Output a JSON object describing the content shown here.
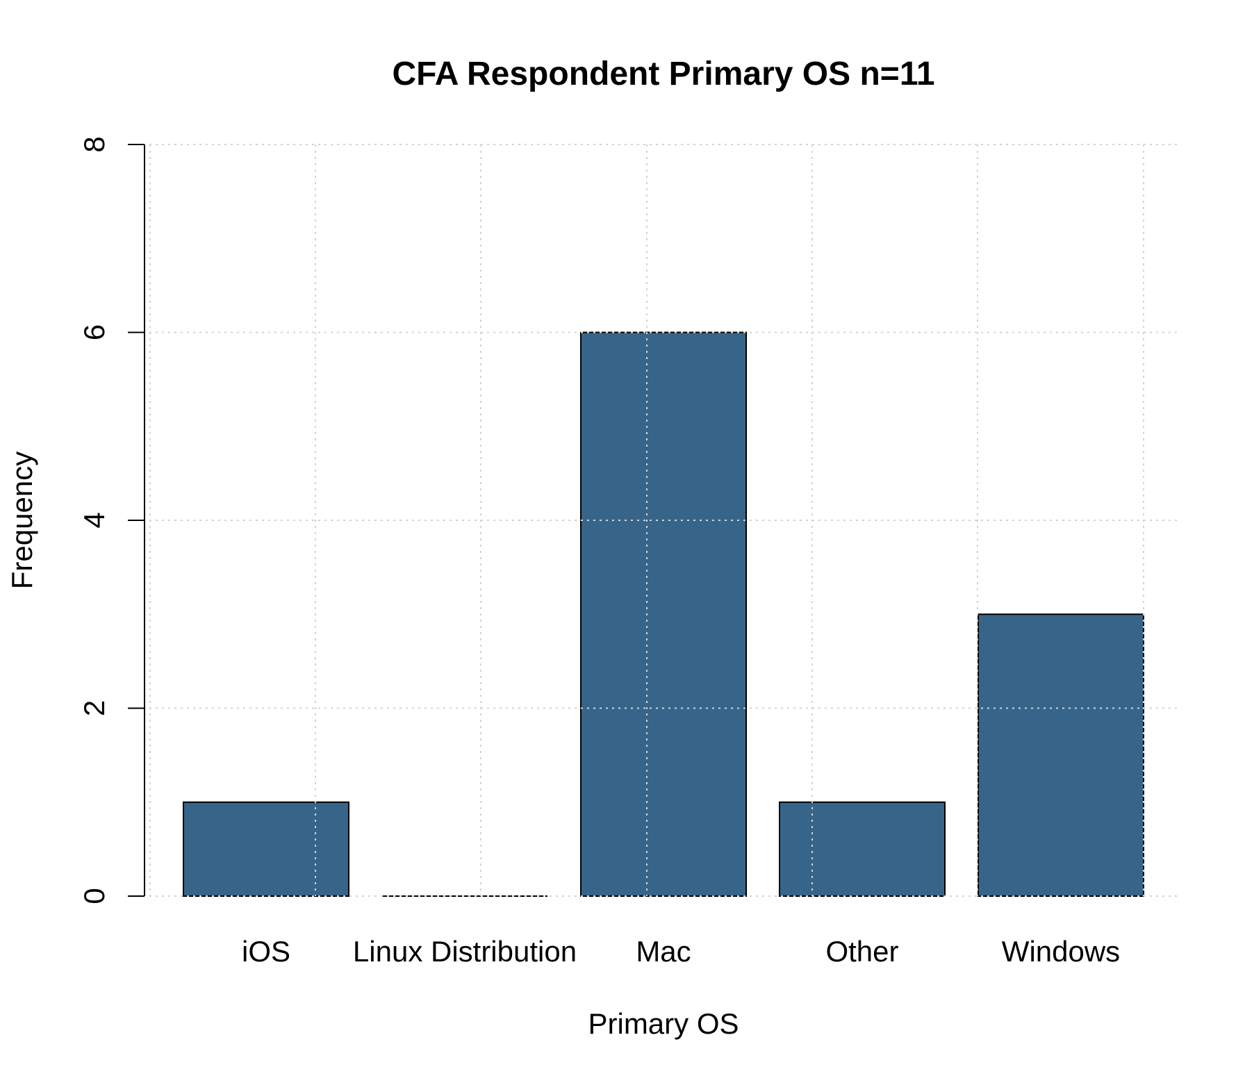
{
  "chart_data": {
    "type": "bar",
    "title": "CFA Respondent Primary OS n=11",
    "xlabel": "Primary OS",
    "ylabel": "Frequency",
    "categories": [
      "iOS",
      "Linux Distribution",
      "Mac",
      "Other",
      "Windows"
    ],
    "values": [
      1,
      0,
      6,
      1,
      3
    ],
    "ylim": [
      0,
      8
    ],
    "yticks": [
      0,
      2,
      4,
      6,
      8
    ],
    "grid": true,
    "bar_color": "#376589",
    "grid_color": "#d3d3d3"
  }
}
